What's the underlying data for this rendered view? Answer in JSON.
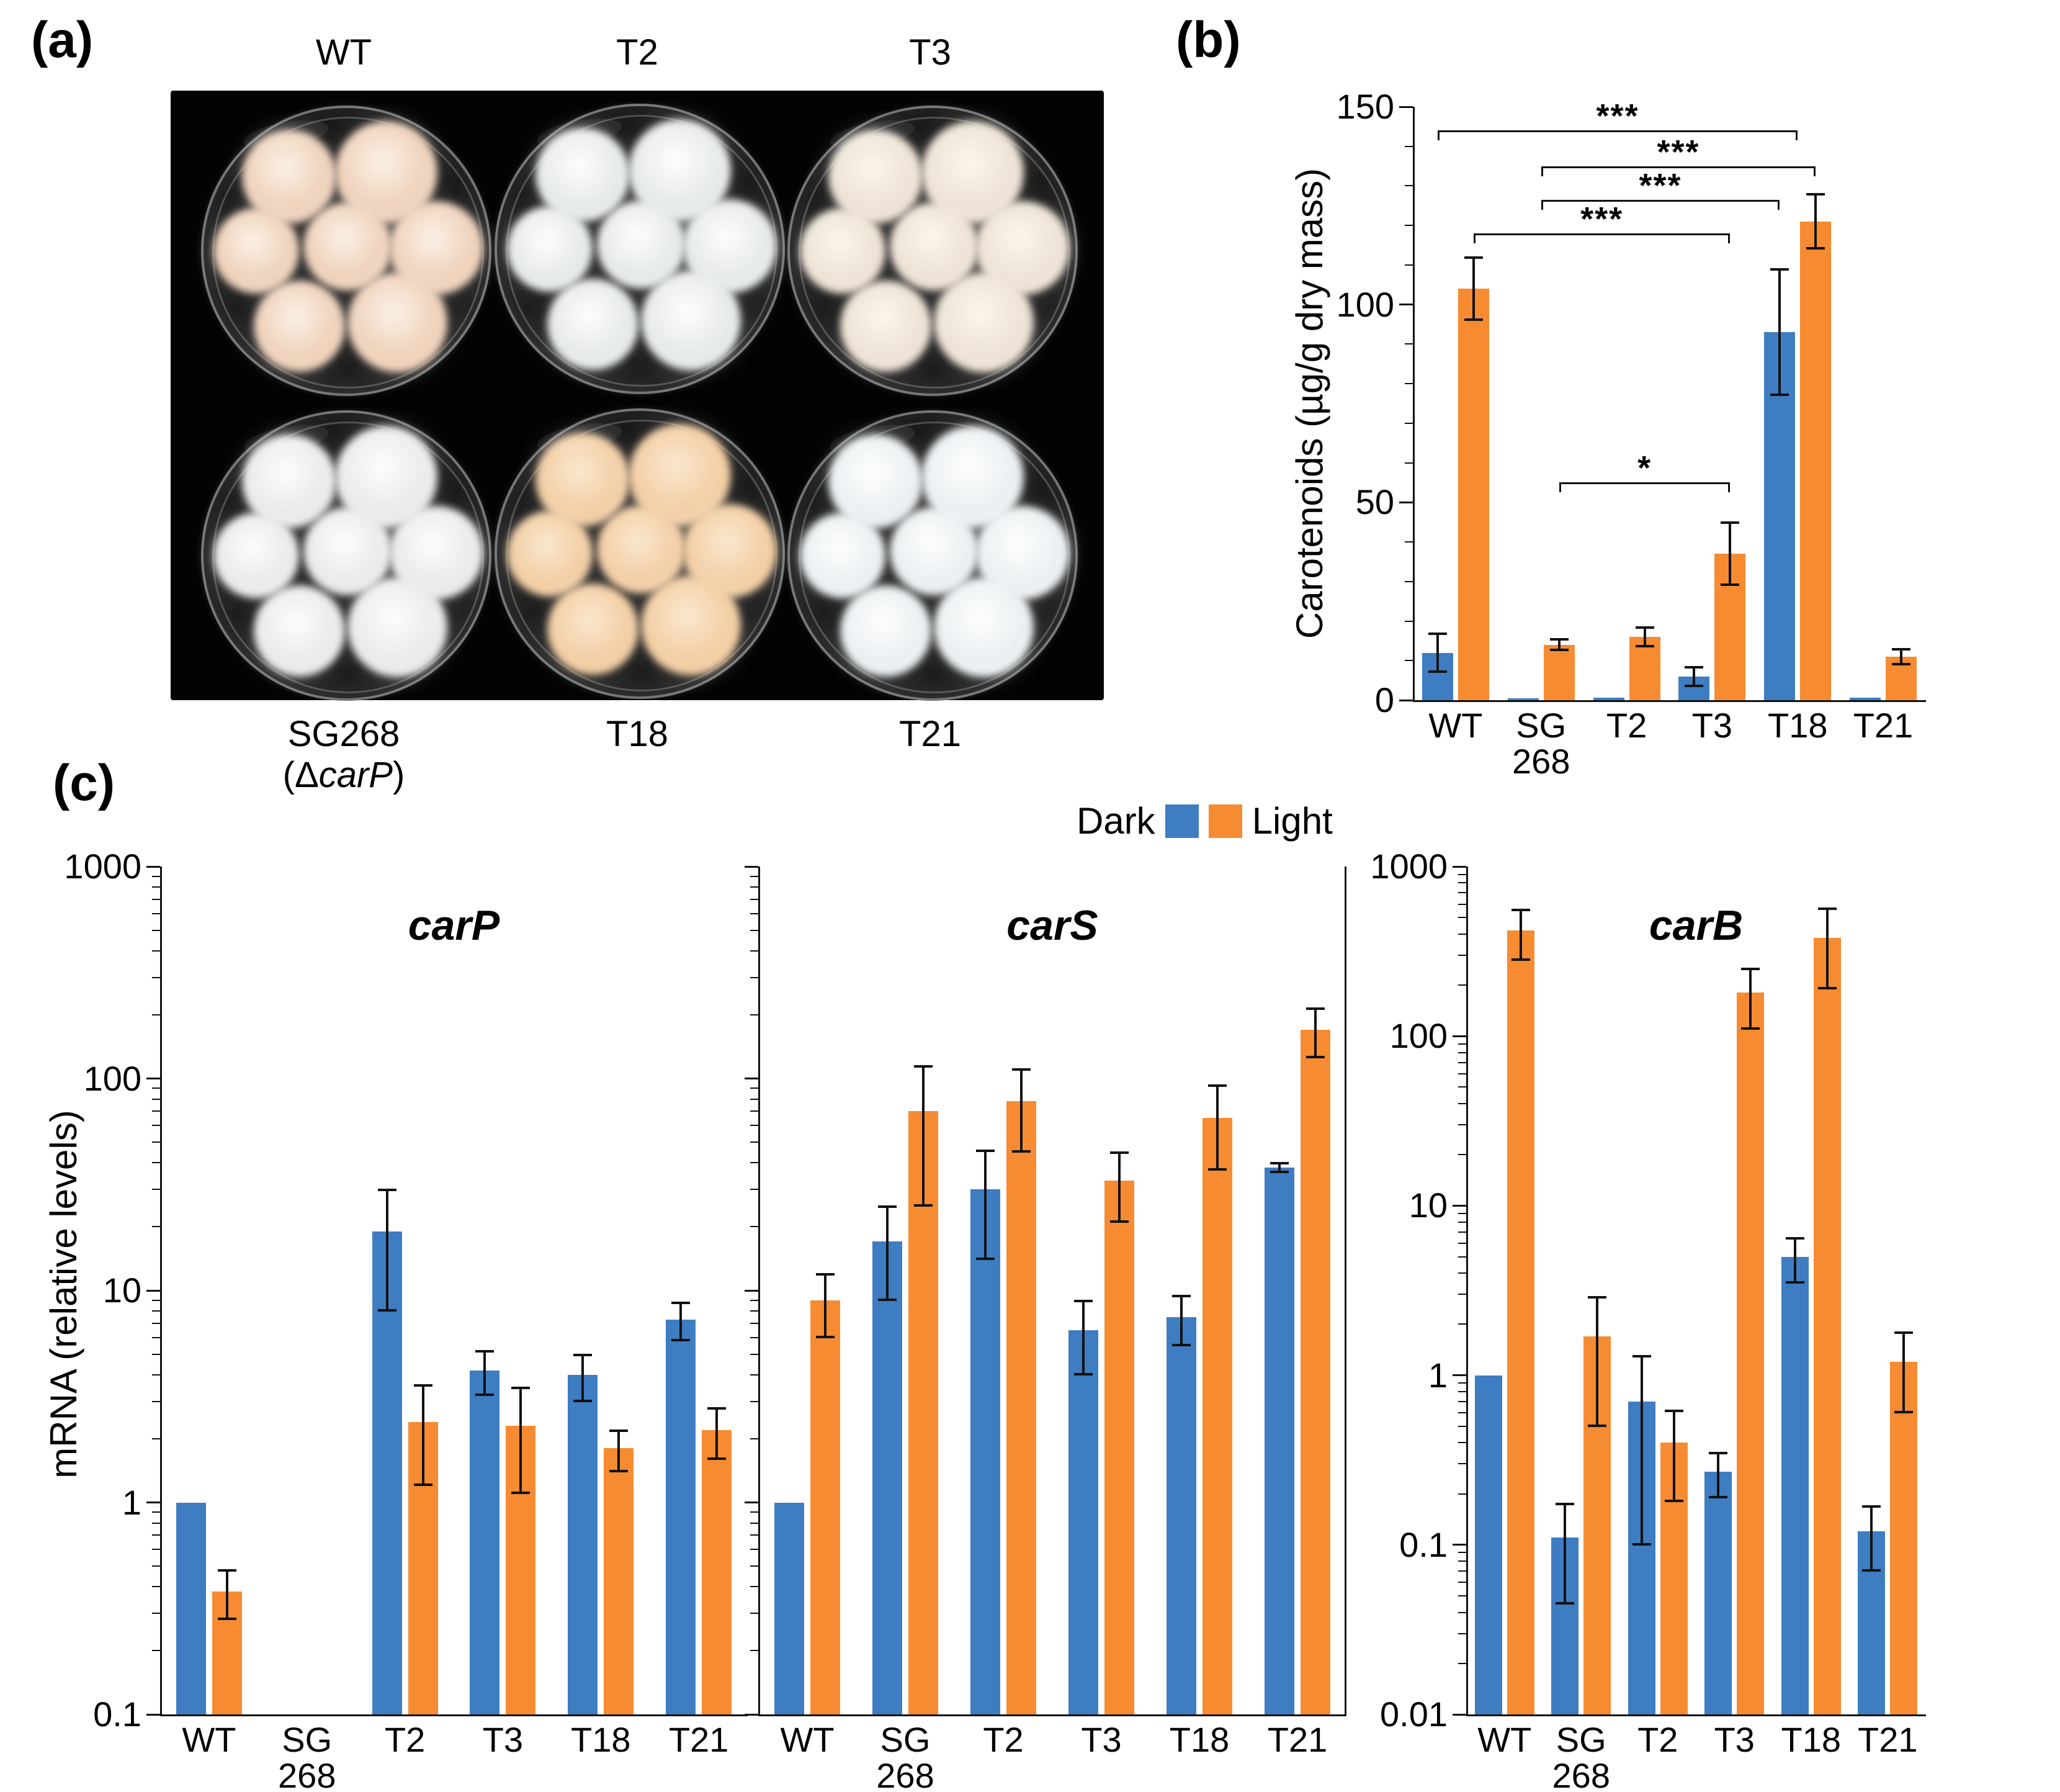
{
  "figure": {
    "panel_a_label": "(a)",
    "panel_b_label": "(b)",
    "panel_c_label": "(c)"
  },
  "panel_a": {
    "top_labels": [
      "WT",
      "T2",
      "T3"
    ],
    "bottom_labels": [
      {
        "text": "SG268",
        "sub": {
          "pre": "(Δ",
          "gene": "carP",
          "post": ")"
        }
      },
      {
        "text": "T18"
      },
      {
        "text": "T21"
      }
    ],
    "dishes": [
      {
        "strain": "WT",
        "main": "#efd3bd",
        "hi": "#fbf1e6"
      },
      {
        "strain": "T2",
        "main": "#e7eaeb",
        "hi": "#fdfdfd"
      },
      {
        "strain": "T3",
        "main": "#eee3d6",
        "hi": "#fbf6ee"
      },
      {
        "strain": "SG268",
        "main": "#e9eceb",
        "hi": "#fcfdfd"
      },
      {
        "strain": "T18",
        "main": "#f3cfa6",
        "hi": "#fae8d0"
      },
      {
        "strain": "T21",
        "main": "#ecf0f2",
        "hi": "#fdfefe"
      }
    ]
  },
  "legend": {
    "dark_label": "Dark",
    "light_label": "Light",
    "dark_color": "#3E7DC2",
    "light_color": "#F68B32"
  },
  "panel_c": {
    "ylabel": "mRNA (relative levels)"
  },
  "chart_data": [
    {
      "id": "chart-b",
      "type": "bar",
      "scale": "linear",
      "title": "",
      "ylabel": "Carotenoids (µg/g dry mass)",
      "ylim": [
        0,
        150
      ],
      "yticks": [
        0,
        50,
        100,
        150
      ],
      "minor_step": 10,
      "categories": [
        "WT",
        "SG|268",
        "T2",
        "T3",
        "T18",
        "T21"
      ],
      "legend_position": "below-left",
      "grid": false,
      "series": [
        {
          "name": "Dark",
          "color": "#3E7DC2",
          "values": [
            12,
            0.5,
            0.7,
            6,
            93,
            0.7
          ],
          "errors": [
            5,
            0,
            0,
            2.5,
            16,
            0
          ]
        },
        {
          "name": "Light",
          "color": "#F68B32",
          "values": [
            104,
            14,
            16,
            37,
            121,
            11
          ],
          "errors": [
            8,
            1.5,
            2.5,
            8,
            7,
            2
          ]
        }
      ],
      "significance": [
        {
          "x1": [
            0,
            -1
          ],
          "x2": [
            4,
            0
          ],
          "y": 144,
          "label": "***"
        },
        {
          "x1": [
            1,
            0
          ],
          "x2": [
            4,
            1
          ],
          "y": 135,
          "label": "***"
        },
        {
          "x1": [
            1,
            0
          ],
          "x2": [
            4,
            -1
          ],
          "y": 126.5,
          "label": "***"
        },
        {
          "x1": [
            0,
            1
          ],
          "x2": [
            3,
            1
          ],
          "y": 118,
          "label": "***"
        },
        {
          "x1": [
            1,
            1
          ],
          "x2": [
            3,
            1
          ],
          "y": 55,
          "label": "*"
        }
      ]
    },
    {
      "id": "chart-carP",
      "type": "bar",
      "scale": "log",
      "title": "carP",
      "ylabel": "mRNA (relative levels)",
      "ylim": [
        0.1,
        1000
      ],
      "yticks": [
        0.1,
        1,
        10,
        100,
        1000
      ],
      "categories": [
        "WT",
        "SG|268",
        "T2",
        "T3",
        "T18",
        "T21"
      ],
      "grid": false,
      "series": [
        {
          "name": "Dark",
          "color": "#3E7DC2",
          "values": [
            1.0,
            null,
            19,
            4.2,
            4.0,
            7.3
          ],
          "errors": [
            0,
            null,
            11,
            1,
            1,
            1.5
          ]
        },
        {
          "name": "Light",
          "color": "#F68B32",
          "values": [
            0.38,
            null,
            2.4,
            2.3,
            1.8,
            2.2
          ],
          "errors": [
            0.1,
            null,
            1.2,
            1.2,
            0.4,
            0.6
          ]
        }
      ]
    },
    {
      "id": "chart-carS",
      "type": "bar",
      "scale": "log",
      "title": "carS",
      "ylabel": "mRNA (relative levels)",
      "ylim": [
        0.1,
        1000
      ],
      "yticks": [
        0.1,
        1,
        10,
        100,
        1000
      ],
      "categories": [
        "WT",
        "SG|268",
        "T2",
        "T3",
        "T18",
        "T21"
      ],
      "grid": false,
      "series": [
        {
          "name": "Dark",
          "color": "#3E7DC2",
          "values": [
            1.0,
            17,
            30,
            6.5,
            7.5,
            38
          ],
          "errors": [
            0,
            8,
            16,
            2.5,
            2,
            2
          ]
        },
        {
          "name": "Light",
          "color": "#F68B32",
          "values": [
            9,
            70,
            78,
            33,
            65,
            170
          ],
          "errors": [
            3,
            45,
            33,
            12,
            28,
            45
          ]
        }
      ]
    },
    {
      "id": "chart-carB",
      "type": "bar",
      "scale": "log",
      "title": "carB",
      "ylabel": "mRNA (relative levels)",
      "ylim": [
        0.01,
        1000
      ],
      "yticks": [
        0.01,
        0.1,
        1,
        10,
        100,
        1000
      ],
      "categories": [
        "WT",
        "SG|268",
        "T2",
        "T3",
        "T18",
        "T21"
      ],
      "grid": false,
      "series": [
        {
          "name": "Dark",
          "color": "#3E7DC2",
          "values": [
            1.0,
            0.11,
            0.7,
            0.27,
            5,
            0.12
          ],
          "errors": [
            0,
            0.065,
            0.6,
            0.08,
            1.5,
            0.05
          ]
        },
        {
          "name": "Light",
          "color": "#F68B32",
          "values": [
            420,
            1.7,
            0.4,
            180,
            380,
            1.2
          ],
          "errors": [
            140,
            1.2,
            0.22,
            70,
            190,
            0.6
          ]
        }
      ]
    }
  ]
}
